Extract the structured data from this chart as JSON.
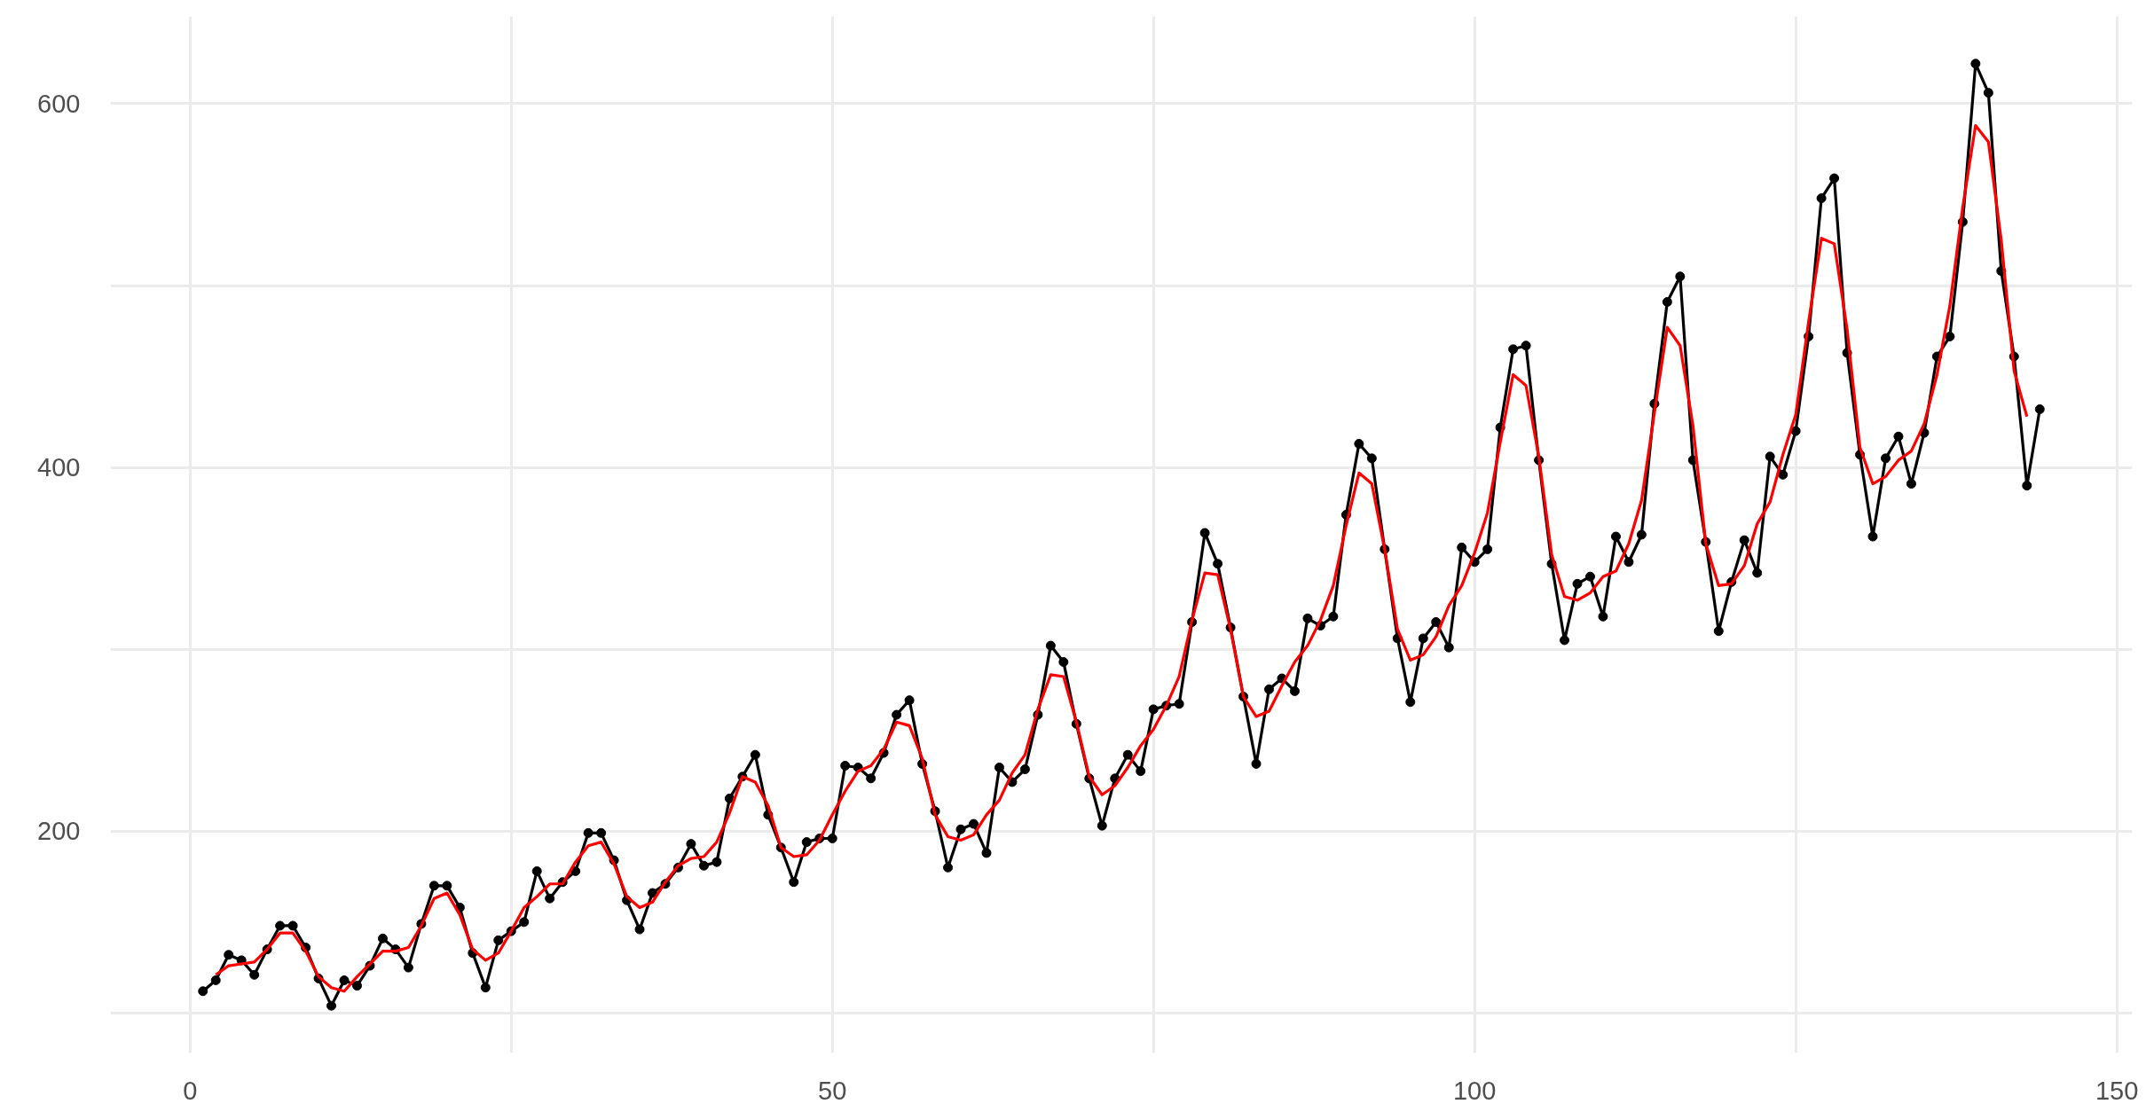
{
  "chart_data": {
    "type": "line",
    "x": [
      1,
      2,
      3,
      4,
      5,
      6,
      7,
      8,
      9,
      10,
      11,
      12,
      13,
      14,
      15,
      16,
      17,
      18,
      19,
      20,
      21,
      22,
      23,
      24,
      25,
      26,
      27,
      28,
      29,
      30,
      31,
      32,
      33,
      34,
      35,
      36,
      37,
      38,
      39,
      40,
      41,
      42,
      43,
      44,
      45,
      46,
      47,
      48,
      49,
      50,
      51,
      52,
      53,
      54,
      55,
      56,
      57,
      58,
      59,
      60,
      61,
      62,
      63,
      64,
      65,
      66,
      67,
      68,
      69,
      70,
      71,
      72,
      73,
      74,
      75,
      76,
      77,
      78,
      79,
      80,
      81,
      82,
      83,
      84,
      85,
      86,
      87,
      88,
      89,
      90,
      91,
      92,
      93,
      94,
      95,
      96,
      97,
      98,
      99,
      100,
      101,
      102,
      103,
      104,
      105,
      106,
      107,
      108,
      109,
      110,
      111,
      112,
      113,
      114,
      115,
      116,
      117,
      118,
      119,
      120,
      121,
      122,
      123,
      124,
      125,
      126,
      127,
      128,
      129,
      130,
      131,
      132,
      133,
      134,
      135,
      136,
      137,
      138,
      139,
      140,
      141,
      142,
      143,
      144
    ],
    "xlim": [
      -6.2,
      151.2
    ],
    "ylim": [
      78,
      648
    ],
    "xticks": [
      0,
      {
        "value": 25,
        "label": null
      },
      50,
      {
        "value": 75,
        "label": null
      },
      100,
      {
        "value": 125,
        "label": null
      },
      150
    ],
    "yticks": [
      {
        "value": 100,
        "label": null
      },
      200,
      {
        "value": 300,
        "label": null
      },
      400,
      {
        "value": 500,
        "label": null
      },
      600
    ],
    "grid": true,
    "series": [
      {
        "color": "#000000",
        "marker": "circle",
        "values": [
          112,
          118,
          132,
          129,
          121,
          135,
          148,
          148,
          136,
          119,
          104,
          118,
          115,
          126,
          141,
          135,
          125,
          149,
          170,
          170,
          158,
          133,
          114,
          140,
          145,
          150,
          178,
          163,
          172,
          178,
          199,
          199,
          184,
          162,
          146,
          166,
          171,
          180,
          193,
          181,
          183,
          218,
          230,
          242,
          209,
          191,
          172,
          194,
          196,
          196,
          236,
          235,
          229,
          243,
          264,
          272,
          237,
          211,
          180,
          201,
          204,
          188,
          235,
          227,
          234,
          264,
          302,
          293,
          259,
          229,
          203,
          229,
          242,
          233,
          267,
          269,
          270,
          315,
          364,
          347,
          312,
          274,
          237,
          278,
          284,
          277,
          317,
          313,
          318,
          374,
          413,
          405,
          355,
          306,
          271,
          306,
          315,
          301,
          356,
          348,
          355,
          422,
          465,
          467,
          404,
          347,
          305,
          336,
          340,
          318,
          362,
          348,
          363,
          435,
          491,
          505,
          404,
          359,
          310,
          337,
          360,
          342,
          406,
          396,
          420,
          472,
          548,
          559,
          463,
          407,
          362,
          405,
          417,
          391,
          419,
          461,
          472,
          535,
          622,
          606,
          508,
          461,
          390,
          432
        ]
      },
      {
        "type": "line",
        "color": "#ff0000",
        "marker": "none",
        "x": [
          2,
          3,
          4,
          5,
          6,
          7,
          8,
          9,
          10,
          11,
          12,
          13,
          14,
          15,
          16,
          17,
          18,
          19,
          20,
          21,
          22,
          23,
          24,
          25,
          26,
          27,
          28,
          29,
          30,
          31,
          32,
          33,
          34,
          35,
          36,
          37,
          38,
          39,
          40,
          41,
          42,
          43,
          44,
          45,
          46,
          47,
          48,
          49,
          50,
          51,
          52,
          53,
          54,
          55,
          56,
          57,
          58,
          59,
          60,
          61,
          62,
          63,
          64,
          65,
          66,
          67,
          68,
          69,
          70,
          71,
          72,
          73,
          74,
          75,
          76,
          77,
          78,
          79,
          80,
          81,
          82,
          83,
          84,
          85,
          86,
          87,
          88,
          89,
          90,
          91,
          92,
          93,
          94,
          95,
          96,
          97,
          98,
          99,
          100,
          101,
          102,
          103,
          104,
          105,
          106,
          107,
          108,
          109,
          110,
          111,
          112,
          113,
          114,
          115,
          116,
          117,
          118,
          119,
          120,
          121,
          122,
          123,
          124,
          125,
          126,
          127,
          128,
          129,
          130,
          131,
          132,
          133,
          134,
          135,
          136,
          137,
          138,
          139,
          140,
          141,
          142,
          143
        ],
        "values": [
          121,
          126,
          127,
          128,
          135,
          144,
          144,
          134,
          120,
          114,
          112,
          120,
          127,
          134,
          134,
          136,
          148,
          163,
          166,
          154,
          135,
          129,
          133,
          145,
          158,
          164,
          171,
          171,
          183,
          192,
          194,
          182,
          164,
          158,
          161,
          172,
          181,
          185,
          186,
          194,
          210,
          230,
          227,
          214,
          191,
          186,
          187,
          195,
          209,
          222,
          233,
          236,
          245,
          260,
          258,
          240,
          209,
          197,
          195,
          198,
          209,
          217,
          232,
          242,
          267,
          286,
          285,
          260,
          230,
          220,
          225,
          235,
          247,
          256,
          269,
          285,
          316,
          342,
          341,
          311,
          274,
          263,
          266,
          280,
          293,
          302,
          316,
          335,
          368,
          397,
          391,
          355,
          311,
          294,
          297,
          307,
          324,
          335,
          353,
          375,
          414,
          451,
          445,
          406,
          352,
          329,
          327,
          331,
          340,
          343,
          358,
          382,
          430,
          477,
          467,
          423,
          358,
          335,
          336,
          346,
          369,
          381,
          407,
          429,
          480,
          526,
          523,
          476,
          411,
          391,
          395,
          404,
          409,
          424,
          451,
          489,
          543,
          588,
          579,
          525,
          453,
          428
        ]
      }
    ]
  }
}
